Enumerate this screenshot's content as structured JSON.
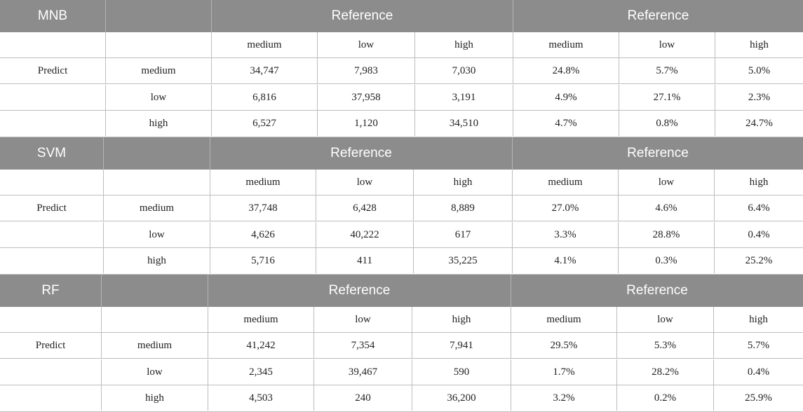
{
  "tables": [
    {
      "model": "MNB",
      "reference_labels": [
        "Reference",
        "Reference"
      ],
      "col_headers": [
        "medium",
        "low",
        "high",
        "medium",
        "low",
        "high"
      ],
      "row_group_label": "Predict",
      "rows": [
        {
          "label": "medium",
          "values": [
            "34,747",
            "7,983",
            "7,030",
            "24.8%",
            "5.7%",
            "5.0%"
          ]
        },
        {
          "label": "low",
          "values": [
            "6,816",
            "37,958",
            "3,191",
            "4.9%",
            "27.1%",
            "2.3%"
          ]
        },
        {
          "label": "high",
          "values": [
            "6,527",
            "1,120",
            "34,510",
            "4.7%",
            "0.8%",
            "24.7%"
          ]
        }
      ]
    },
    {
      "model": "SVM",
      "reference_labels": [
        "Reference",
        "Reference"
      ],
      "col_headers": [
        "medium",
        "low",
        "high",
        "medium",
        "low",
        "high"
      ],
      "row_group_label": "Predict",
      "rows": [
        {
          "label": "medium",
          "values": [
            "37,748",
            "6,428",
            "8,889",
            "27.0%",
            "4.6%",
            "6.4%"
          ]
        },
        {
          "label": "low",
          "values": [
            "4,626",
            "40,222",
            "617",
            "3.3%",
            "28.8%",
            "0.4%"
          ]
        },
        {
          "label": "high",
          "values": [
            "5,716",
            "411",
            "35,225",
            "4.1%",
            "0.3%",
            "25.2%"
          ]
        }
      ]
    },
    {
      "model": "RF",
      "reference_labels": [
        "Reference",
        "Reference"
      ],
      "col_headers": [
        "medium",
        "low",
        "high",
        "medium",
        "low",
        "high"
      ],
      "row_group_label": "Predict",
      "rows": [
        {
          "label": "medium",
          "values": [
            "41,242",
            "7,354",
            "7,941",
            "29.5%",
            "5.3%",
            "5.7%"
          ]
        },
        {
          "label": "low",
          "values": [
            "2,345",
            "39,467",
            "590",
            "1.7%",
            "28.2%",
            "0.4%"
          ]
        },
        {
          "label": "high",
          "values": [
            "4,503",
            "240",
            "36,200",
            "3.2%",
            "0.2%",
            "25.9%"
          ]
        }
      ]
    }
  ]
}
